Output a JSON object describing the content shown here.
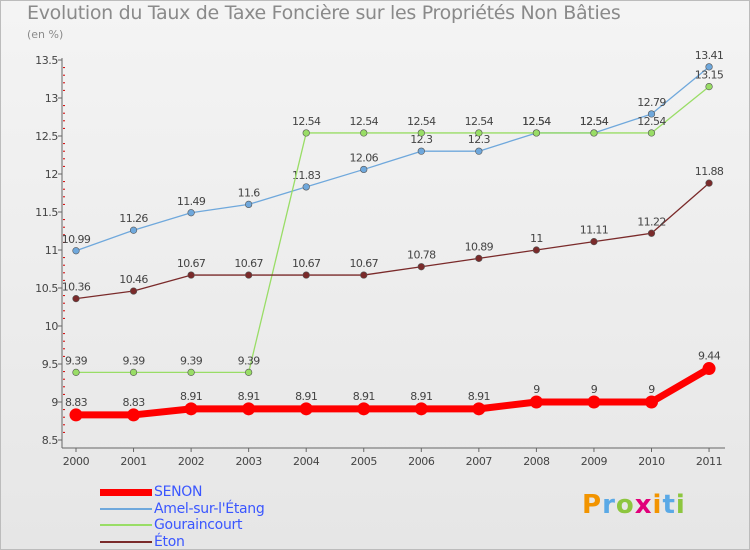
{
  "title": "Evolution du Taux de Taxe Foncière sur les Propriétés Non Bâties",
  "unit": "(en %)",
  "brand": {
    "letters": [
      "P",
      "r",
      "o",
      "x",
      "i",
      "t",
      "i"
    ],
    "colors": [
      "#f29400",
      "#5aa9e6",
      "#8dc63f",
      "#e1007a",
      "#f29400",
      "#5aa9e6",
      "#8dc63f"
    ]
  },
  "chart_data": {
    "type": "line",
    "x": [
      "2000",
      "2001",
      "2002",
      "2003",
      "2004",
      "2005",
      "2006",
      "2007",
      "2008",
      "2009",
      "2010",
      "2011"
    ],
    "ylim": [
      8.5,
      13.5
    ],
    "yticks": [
      "8.5",
      "9",
      "9.5",
      "10",
      "10.5",
      "11",
      "11.5",
      "12",
      "12.5",
      "13",
      "13.5"
    ],
    "grid": false,
    "legend_position": "bottom-left",
    "series": [
      {
        "name": "SENON",
        "color": "#ff0000",
        "values": [
          8.83,
          8.83,
          8.91,
          8.91,
          8.91,
          8.91,
          8.91,
          8.91,
          9,
          9,
          9,
          9.44
        ],
        "labels": [
          "8.83",
          "8.83",
          "8.91",
          "8.91",
          "8.91",
          "8.91",
          "8.91",
          "8.91",
          "9",
          "9",
          "9",
          "9.44"
        ]
      },
      {
        "name": "Amel-sur-l'Étang",
        "color": "#6fa8dc",
        "values": [
          10.99,
          11.26,
          11.49,
          11.6,
          11.83,
          12.06,
          12.3,
          12.3,
          12.54,
          12.54,
          12.79,
          13.41
        ],
        "labels": [
          "10.99",
          "11.26",
          "11.49",
          "11.6",
          "11.83",
          "12.06",
          "12.3",
          "12.3",
          "12.54",
          "12.54",
          "12.79",
          "13.41"
        ]
      },
      {
        "name": "Gouraincourt",
        "color": "#99dd66",
        "values": [
          9.39,
          9.39,
          9.39,
          9.39,
          12.54,
          12.54,
          12.54,
          12.54,
          12.54,
          12.54,
          12.54,
          13.15
        ],
        "labels": [
          "9.39",
          "9.39",
          "9.39",
          "9.39",
          "12.54",
          "12.54",
          "12.54",
          "12.54",
          "12.54",
          "12.54",
          "12.54",
          "13.15"
        ]
      },
      {
        "name": "Éton",
        "color": "#7a2a2a",
        "values": [
          10.36,
          10.46,
          10.67,
          10.67,
          10.67,
          10.67,
          10.78,
          10.89,
          11,
          11.11,
          11.22,
          11.88
        ],
        "labels": [
          "10.36",
          "10.46",
          "10.67",
          "10.67",
          "10.67",
          "10.67",
          "10.78",
          "10.89",
          "11",
          "11.11",
          "11.22",
          "11.88"
        ]
      }
    ]
  }
}
